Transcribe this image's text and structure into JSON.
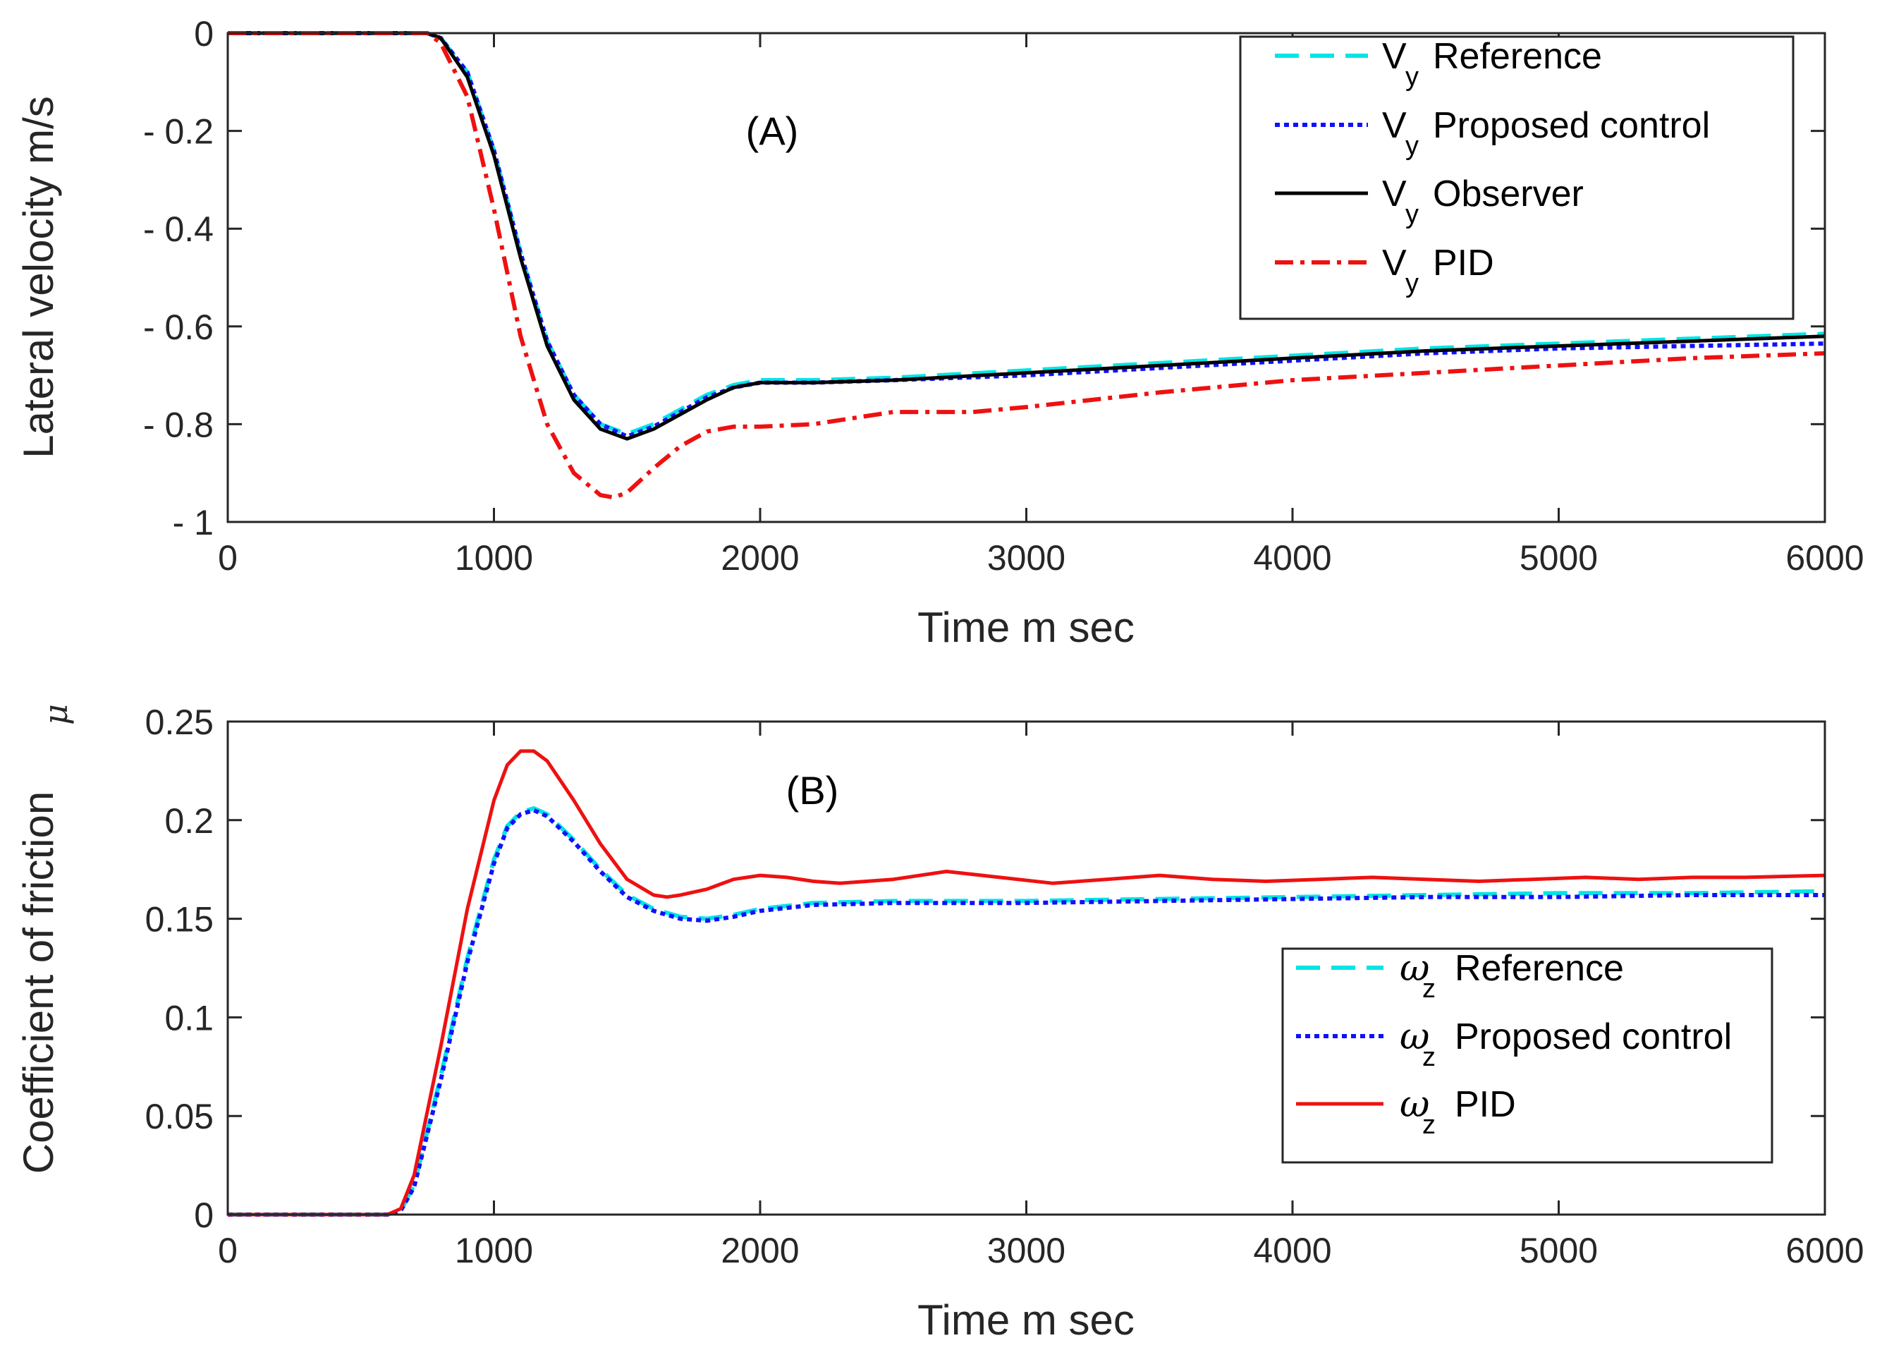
{
  "chart_data": [
    {
      "id": "A",
      "type": "line",
      "annotation": "(A)",
      "xlabel": "Time m sec",
      "ylabel": "Lateral velocity m/s",
      "xlim": [
        0,
        6000
      ],
      "ylim": [
        -1,
        0
      ],
      "xticks": [
        0,
        1000,
        2000,
        3000,
        4000,
        5000,
        6000
      ],
      "xtick_labels": [
        "0",
        "1000",
        "2000",
        "3000",
        "4000",
        "5000",
        "6000"
      ],
      "yticks": [
        0,
        -0.2,
        -0.4,
        -0.6,
        -0.8,
        -1
      ],
      "ytick_labels": [
        "0",
        "- 0.2",
        "- 0.4",
        "- 0.6",
        "- 0.8",
        "- 1"
      ],
      "legend_position": "top-right",
      "series": [
        {
          "name": "Reference",
          "legend_symbol": "V",
          "legend_sub": "y",
          "color": "#00e5e5",
          "style": "dashed",
          "x": [
            0,
            600,
            750,
            800,
            900,
            1000,
            1100,
            1200,
            1300,
            1400,
            1500,
            1600,
            1700,
            1800,
            1900,
            2000,
            2200,
            2500,
            3000,
            3500,
            4000,
            4500,
            5000,
            5500,
            6000
          ],
          "y": [
            0,
            0,
            0,
            -0.01,
            -0.08,
            -0.24,
            -0.45,
            -0.63,
            -0.74,
            -0.8,
            -0.82,
            -0.8,
            -0.77,
            -0.74,
            -0.72,
            -0.71,
            -0.71,
            -0.705,
            -0.69,
            -0.675,
            -0.66,
            -0.645,
            -0.635,
            -0.625,
            -0.615
          ]
        },
        {
          "name": "Proposed control",
          "legend_symbol": "V",
          "legend_sub": "y",
          "color": "#1010ff",
          "style": "dotted",
          "x": [
            0,
            600,
            750,
            800,
            900,
            1000,
            1100,
            1200,
            1300,
            1400,
            1500,
            1600,
            1700,
            1800,
            1900,
            2000,
            2200,
            2500,
            3000,
            3500,
            4000,
            4500,
            5000,
            5500,
            6000
          ],
          "y": [
            0,
            0,
            0,
            -0.01,
            -0.08,
            -0.24,
            -0.45,
            -0.63,
            -0.74,
            -0.8,
            -0.825,
            -0.805,
            -0.775,
            -0.745,
            -0.725,
            -0.715,
            -0.715,
            -0.71,
            -0.7,
            -0.685,
            -0.67,
            -0.655,
            -0.645,
            -0.64,
            -0.635
          ]
        },
        {
          "name": "Observer",
          "legend_symbol": "V",
          "legend_sub": "y",
          "color": "#000000",
          "style": "solid",
          "x": [
            0,
            600,
            750,
            800,
            900,
            1000,
            1100,
            1200,
            1300,
            1400,
            1500,
            1600,
            1700,
            1800,
            1900,
            2000,
            2200,
            2500,
            3000,
            3500,
            4000,
            4500,
            5000,
            5500,
            6000
          ],
          "y": [
            0,
            0,
            0,
            -0.01,
            -0.09,
            -0.25,
            -0.46,
            -0.64,
            -0.75,
            -0.81,
            -0.83,
            -0.81,
            -0.78,
            -0.75,
            -0.725,
            -0.715,
            -0.715,
            -0.71,
            -0.695,
            -0.68,
            -0.665,
            -0.65,
            -0.64,
            -0.63,
            -0.62
          ]
        },
        {
          "name": "PID",
          "legend_symbol": "V",
          "legend_sub": "y",
          "color": "#ee1111",
          "style": "dashdot",
          "x": [
            0,
            600,
            750,
            800,
            900,
            1000,
            1100,
            1200,
            1300,
            1400,
            1450,
            1500,
            1600,
            1700,
            1800,
            1900,
            2000,
            2200,
            2500,
            2800,
            3000,
            3500,
            4000,
            4500,
            5000,
            5500,
            6000
          ],
          "y": [
            0,
            0,
            0,
            -0.02,
            -0.13,
            -0.36,
            -0.62,
            -0.8,
            -0.9,
            -0.945,
            -0.95,
            -0.94,
            -0.89,
            -0.845,
            -0.815,
            -0.805,
            -0.805,
            -0.8,
            -0.775,
            -0.775,
            -0.765,
            -0.735,
            -0.71,
            -0.695,
            -0.68,
            -0.665,
            -0.655
          ]
        }
      ]
    },
    {
      "id": "B",
      "type": "line",
      "annotation": "(B)",
      "xlabel": "Time m sec",
      "ylabel": "Coefficient of friction",
      "ylabel_symbol": "μ",
      "xlim": [
        0,
        6000
      ],
      "ylim": [
        0,
        0.25
      ],
      "xticks": [
        0,
        1000,
        2000,
        3000,
        4000,
        5000,
        6000
      ],
      "xtick_labels": [
        "0",
        "1000",
        "2000",
        "3000",
        "4000",
        "5000",
        "6000"
      ],
      "yticks": [
        0,
        0.05,
        0.1,
        0.15,
        0.2,
        0.25
      ],
      "ytick_labels": [
        "0",
        "0.05",
        "0.1",
        "0.15",
        "0.2",
        "0.25"
      ],
      "legend_position": "lower-right",
      "series": [
        {
          "name": "Reference",
          "legend_symbol": "ω",
          "legend_sub": "z",
          "color": "#00e5e5",
          "style": "dashed",
          "x": [
            0,
            450,
            600,
            650,
            700,
            800,
            900,
            1000,
            1050,
            1100,
            1150,
            1200,
            1300,
            1400,
            1500,
            1600,
            1700,
            1800,
            1900,
            2000,
            2200,
            2500,
            3000,
            3500,
            4000,
            4500,
            5000,
            5500,
            6000
          ],
          "y": [
            0,
            0,
            0,
            0.002,
            0.015,
            0.07,
            0.13,
            0.18,
            0.197,
            0.204,
            0.206,
            0.203,
            0.19,
            0.175,
            0.162,
            0.155,
            0.151,
            0.15,
            0.152,
            0.155,
            0.158,
            0.159,
            0.159,
            0.16,
            0.161,
            0.162,
            0.163,
            0.163,
            0.164
          ]
        },
        {
          "name": "Proposed control",
          "legend_symbol": "ω",
          "legend_sub": "z",
          "color": "#1010ff",
          "style": "dotted",
          "x": [
            0,
            450,
            600,
            650,
            700,
            800,
            900,
            1000,
            1050,
            1100,
            1150,
            1200,
            1300,
            1400,
            1500,
            1600,
            1700,
            1800,
            1900,
            2000,
            2200,
            2500,
            3000,
            3500,
            4000,
            4500,
            5000,
            5500,
            6000
          ],
          "y": [
            0,
            0,
            0,
            0.002,
            0.014,
            0.068,
            0.128,
            0.178,
            0.196,
            0.203,
            0.205,
            0.202,
            0.189,
            0.174,
            0.161,
            0.154,
            0.15,
            0.149,
            0.151,
            0.154,
            0.157,
            0.158,
            0.158,
            0.159,
            0.16,
            0.161,
            0.161,
            0.162,
            0.162
          ]
        },
        {
          "name": "PID",
          "legend_symbol": "ω",
          "legend_sub": "z",
          "color": "#ee1111",
          "style": "solid",
          "x": [
            0,
            450,
            600,
            650,
            700,
            800,
            900,
            1000,
            1050,
            1100,
            1150,
            1200,
            1300,
            1400,
            1500,
            1600,
            1650,
            1700,
            1800,
            1900,
            2000,
            2100,
            2200,
            2300,
            2500,
            2700,
            2900,
            3100,
            3300,
            3500,
            3700,
            3900,
            4100,
            4300,
            4500,
            4700,
            4900,
            5100,
            5300,
            5500,
            5700,
            6000
          ],
          "y": [
            0,
            0,
            0,
            0.003,
            0.02,
            0.085,
            0.155,
            0.21,
            0.228,
            0.235,
            0.235,
            0.23,
            0.21,
            0.188,
            0.17,
            0.162,
            0.161,
            0.162,
            0.165,
            0.17,
            0.172,
            0.171,
            0.169,
            0.168,
            0.17,
            0.174,
            0.171,
            0.168,
            0.17,
            0.172,
            0.17,
            0.169,
            0.17,
            0.171,
            0.17,
            0.169,
            0.17,
            0.171,
            0.17,
            0.171,
            0.171,
            0.172
          ]
        }
      ]
    }
  ]
}
